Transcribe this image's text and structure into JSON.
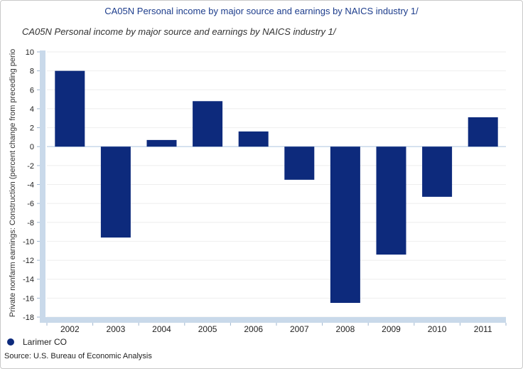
{
  "header": {
    "title": "CA05N Personal income by major source and earnings by NAICS industry 1/"
  },
  "chart_data": {
    "type": "bar",
    "title": "CA05N Personal income by major source and earnings by NAICS industry 1/",
    "xlabel": "",
    "ylabel": "Private nonfarm earnings: Construction (percent change from preceding perio",
    "categories": [
      "2002",
      "2003",
      "2004",
      "2005",
      "2006",
      "2007",
      "2008",
      "2009",
      "2010",
      "2011"
    ],
    "series": [
      {
        "name": "Larimer CO",
        "values": [
          8.0,
          -9.6,
          0.7,
          4.8,
          1.6,
          -3.5,
          -16.5,
          -11.4,
          -5.3,
          3.1
        ]
      }
    ],
    "ylim": [
      -18,
      10
    ],
    "yticks": [
      10,
      8,
      6,
      4,
      2,
      0,
      -2,
      -4,
      -6,
      -8,
      -10,
      -12,
      -14,
      -16,
      -18
    ],
    "grid": true,
    "legend": "bottom-left",
    "bar_color": "#0d2a7c",
    "axis_color": "#c9d9ea"
  },
  "legend": {
    "label": "Larimer CO"
  },
  "footer": {
    "source": "Source: U.S. Bureau of Economic  Analysis"
  }
}
